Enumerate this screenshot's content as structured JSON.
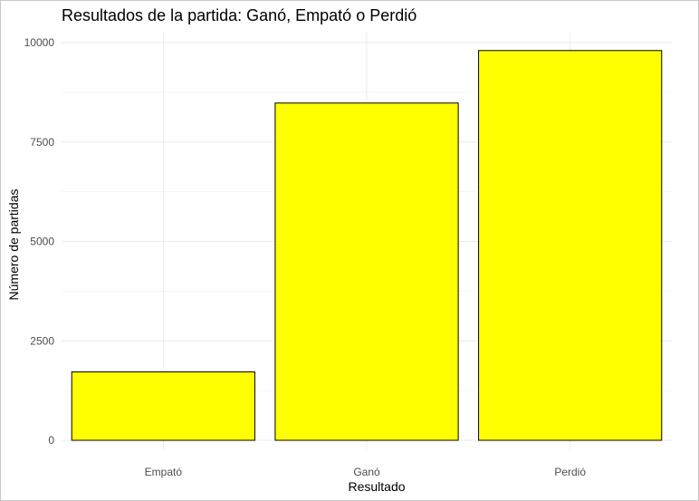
{
  "chart_data": {
    "type": "bar",
    "title": "Resultados de la partida: Ganó, Empató o Perdió",
    "xlabel": "Resultado",
    "ylabel": "Número de partidas",
    "categories": [
      "Empató",
      "Ganó",
      "Perdió"
    ],
    "values": [
      1720,
      8480,
      9800
    ],
    "ylim": [
      0,
      10000
    ],
    "yticks": [
      0,
      2500,
      5000,
      7500,
      10000
    ],
    "grid": true,
    "legend": "none",
    "bar_color": "#FFFF00",
    "bar_outline": "#000000"
  }
}
